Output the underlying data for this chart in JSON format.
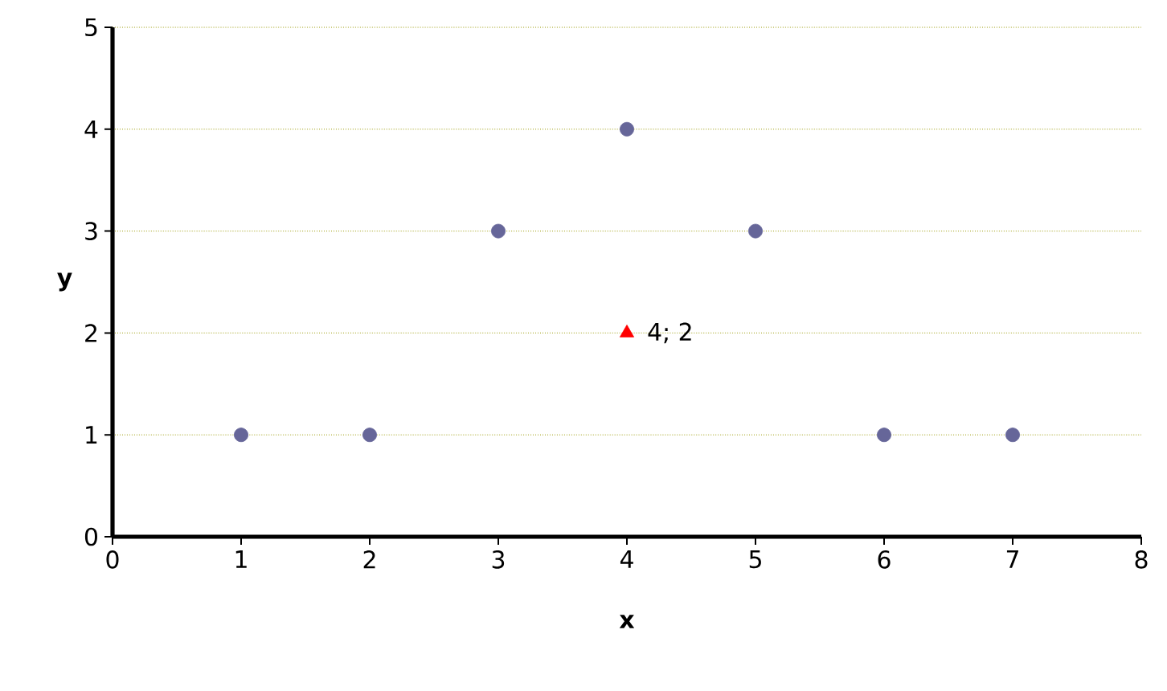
{
  "chart_data": {
    "type": "scatter",
    "xlabel": "x",
    "ylabel": "y",
    "xlim": [
      0,
      8
    ],
    "xticks": [
      0,
      1,
      2,
      3,
      4,
      5,
      6,
      7,
      8
    ],
    "ylim": [
      0,
      5
    ],
    "yticks": [
      0,
      1,
      2,
      3,
      4,
      5
    ],
    "grid": "y",
    "series": [
      {
        "color": "#666699",
        "marker": "circle",
        "x": [
          1,
          2,
          3,
          4,
          5,
          6,
          7
        ],
        "values": [
          1,
          1,
          3,
          4,
          3,
          1,
          1
        ]
      },
      {
        "color": "#ff0000",
        "marker": "triangle",
        "x": [
          4
        ],
        "values": [
          2
        ]
      }
    ],
    "annotations": [
      {
        "text": "4; 2",
        "x": 4,
        "y": 2
      }
    ]
  }
}
